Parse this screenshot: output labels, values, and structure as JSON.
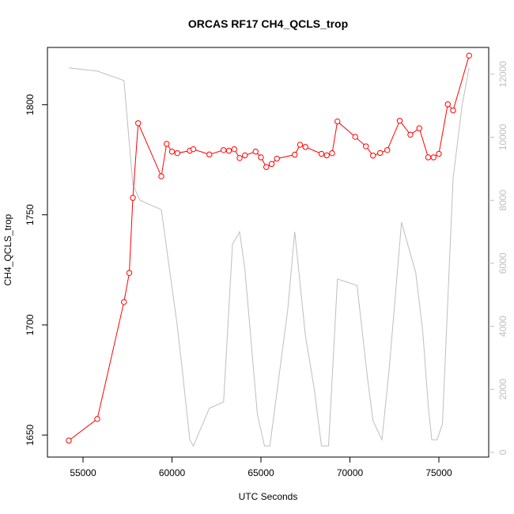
{
  "chart_data": {
    "type": "line",
    "title": "ORCAS RF17 CH4_QCLS_trop",
    "xlabel": "UTC Seconds",
    "ylabel": "CH4_QCLS_trop",
    "xlim": [
      53000,
      77800
    ],
    "ylim": [
      1640,
      1826
    ],
    "y2lim": [
      -150,
      12850
    ],
    "x_ticks": [
      55000,
      60000,
      65000,
      70000,
      75000
    ],
    "y_ticks": [
      1650,
      1700,
      1750,
      1800
    ],
    "y2_ticks": [
      0,
      2000,
      4000,
      6000,
      8000,
      10000,
      12000
    ],
    "grid": false,
    "series": [
      {
        "role": "primary",
        "color": "#ff0000",
        "marker": "open-circle",
        "points": [
          [
            54200,
            1647.5
          ],
          [
            55800,
            1657.3
          ],
          [
            57300,
            1710.4
          ],
          [
            57600,
            1723.6
          ],
          [
            57800,
            1757.7
          ],
          [
            58100,
            1791.6
          ],
          [
            59400,
            1767.5
          ],
          [
            59700,
            1782.2
          ],
          [
            60000,
            1778.7
          ],
          [
            60300,
            1778.0
          ],
          [
            61000,
            1779.1
          ],
          [
            61200,
            1779.8
          ],
          [
            62100,
            1777.4
          ],
          [
            62900,
            1779.4
          ],
          [
            63200,
            1779.1
          ],
          [
            63500,
            1779.8
          ],
          [
            63800,
            1775.8
          ],
          [
            64100,
            1777.0
          ],
          [
            64700,
            1778.7
          ],
          [
            65000,
            1776.1
          ],
          [
            65300,
            1771.7
          ],
          [
            65600,
            1773.1
          ],
          [
            65900,
            1775.5
          ],
          [
            66900,
            1777.3
          ],
          [
            67200,
            1781.8
          ],
          [
            67500,
            1780.8
          ],
          [
            68400,
            1777.7
          ],
          [
            68700,
            1777.0
          ],
          [
            69000,
            1778.0
          ],
          [
            69300,
            1792.4
          ],
          [
            70300,
            1785.4
          ],
          [
            70900,
            1781.1
          ],
          [
            71300,
            1776.9
          ],
          [
            71700,
            1778.1
          ],
          [
            72100,
            1779.4
          ],
          [
            72800,
            1792.7
          ],
          [
            73400,
            1786.4
          ],
          [
            73900,
            1789.3
          ],
          [
            74400,
            1776.1
          ],
          [
            74700,
            1776.1
          ],
          [
            75000,
            1777.7
          ],
          [
            75500,
            1800.2
          ],
          [
            75800,
            1797.4
          ],
          [
            76700,
            1822.3
          ]
        ]
      },
      {
        "role": "secondary",
        "color": "#bebebe",
        "points": [
          [
            54200,
            12200
          ],
          [
            55800,
            12100
          ],
          [
            57300,
            11800
          ],
          [
            57800,
            8500
          ],
          [
            58200,
            8000
          ],
          [
            59400,
            7700
          ],
          [
            60300,
            4000
          ],
          [
            60600,
            2500
          ],
          [
            61000,
            400
          ],
          [
            61200,
            200
          ],
          [
            62100,
            1400
          ],
          [
            62900,
            1600
          ],
          [
            63400,
            6600
          ],
          [
            63800,
            7000
          ],
          [
            64100,
            5800
          ],
          [
            64800,
            1200
          ],
          [
            65200,
            200
          ],
          [
            65500,
            200
          ],
          [
            66500,
            4500
          ],
          [
            66900,
            7000
          ],
          [
            67500,
            3700
          ],
          [
            68000,
            2000
          ],
          [
            68400,
            200
          ],
          [
            68800,
            200
          ],
          [
            69300,
            5500
          ],
          [
            70400,
            5300
          ],
          [
            71000,
            2300
          ],
          [
            71300,
            1000
          ],
          [
            71800,
            400
          ],
          [
            72200,
            2600
          ],
          [
            72900,
            7300
          ],
          [
            73700,
            5700
          ],
          [
            74100,
            3800
          ],
          [
            74400,
            1500
          ],
          [
            74600,
            400
          ],
          [
            74900,
            400
          ],
          [
            75200,
            900
          ],
          [
            75800,
            8700
          ],
          [
            76300,
            11000
          ],
          [
            76700,
            12200
          ]
        ]
      }
    ]
  }
}
